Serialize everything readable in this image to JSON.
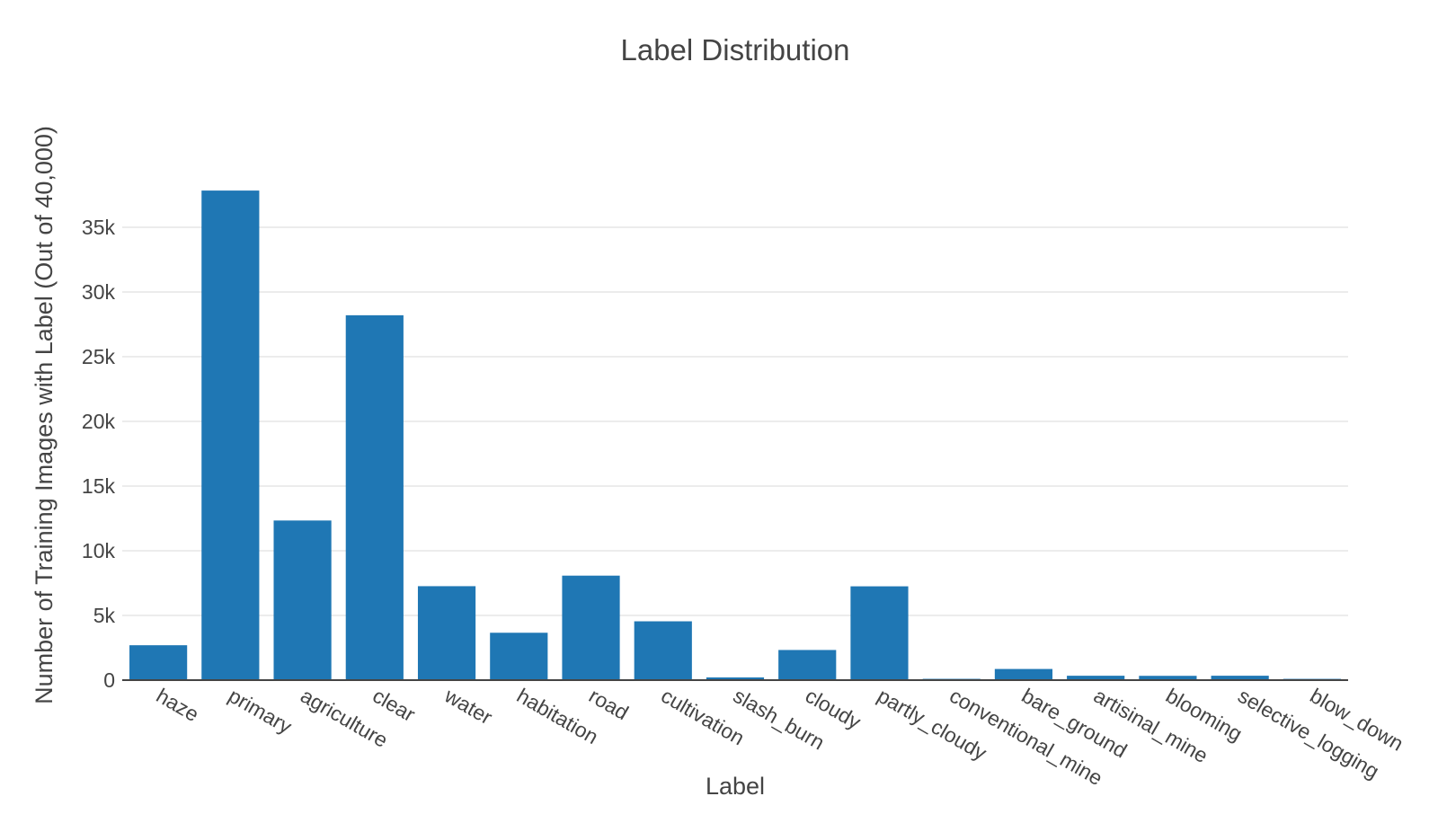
{
  "chart_data": {
    "type": "bar",
    "title": "Label Distribution",
    "xlabel": "Label",
    "ylabel": "Number of Training Images with Label (Out of 40,000)",
    "categories": [
      "haze",
      "primary",
      "agriculture",
      "clear",
      "water",
      "habitation",
      "road",
      "cultivation",
      "slash_burn",
      "cloudy",
      "partly_cloudy",
      "conventional_mine",
      "bare_ground",
      "artisinal_mine",
      "blooming",
      "selective_logging",
      "blow_down"
    ],
    "values": [
      2697,
      37840,
      12338,
      28203,
      7262,
      3662,
      8076,
      4547,
      209,
      2330,
      7251,
      100,
      862,
      339,
      332,
      340,
      98
    ],
    "ylim": [
      0,
      40000
    ],
    "yticks": [
      0,
      5000,
      10000,
      15000,
      20000,
      25000,
      30000,
      35000
    ],
    "ytick_labels": [
      "0",
      "5k",
      "10k",
      "15k",
      "20k",
      "25k",
      "30k",
      "35k"
    ],
    "bar_color": "#1f77b4",
    "grid": true,
    "legend": "none"
  }
}
